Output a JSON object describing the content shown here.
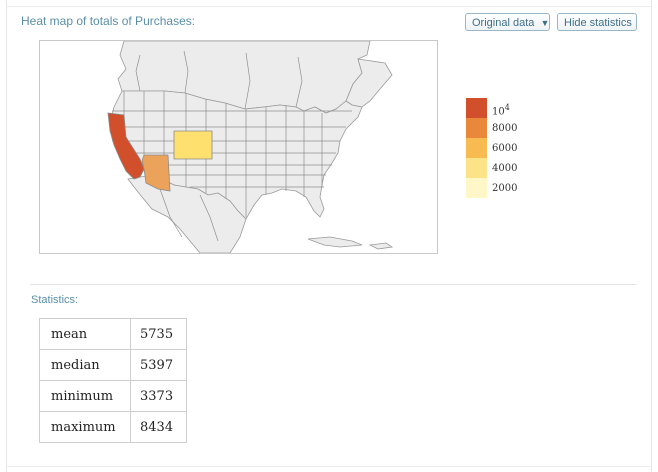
{
  "title": "Heat map of totals of Purchases:",
  "buttons": {
    "original_data": "Original data",
    "original_data_arrow": "▼",
    "hide_statistics": "Hide statistics"
  },
  "legend": {
    "items": [
      {
        "label": "10",
        "sup": "4",
        "color": "#d1502b"
      },
      {
        "label": "8000",
        "color": "#e9873b"
      },
      {
        "label": "6000",
        "color": "#f7bb51"
      },
      {
        "label": "4000",
        "color": "#fde388"
      },
      {
        "label": "2000",
        "color": "#fff7c7"
      }
    ]
  },
  "map": {
    "base_color": "#ececec",
    "border_color": "#9a9a9a",
    "highlighted_states": [
      {
        "name": "California",
        "color": "#d1502b"
      },
      {
        "name": "Arizona",
        "color": "#eba25a"
      },
      {
        "name": "Colorado",
        "color": "#fde06e"
      }
    ]
  },
  "statistics": {
    "title": "Statistics:",
    "rows": [
      {
        "label": "mean",
        "value": "5735"
      },
      {
        "label": "median",
        "value": "5397"
      },
      {
        "label": "minimum",
        "value": "3373"
      },
      {
        "label": "maximum",
        "value": "8434"
      }
    ]
  }
}
